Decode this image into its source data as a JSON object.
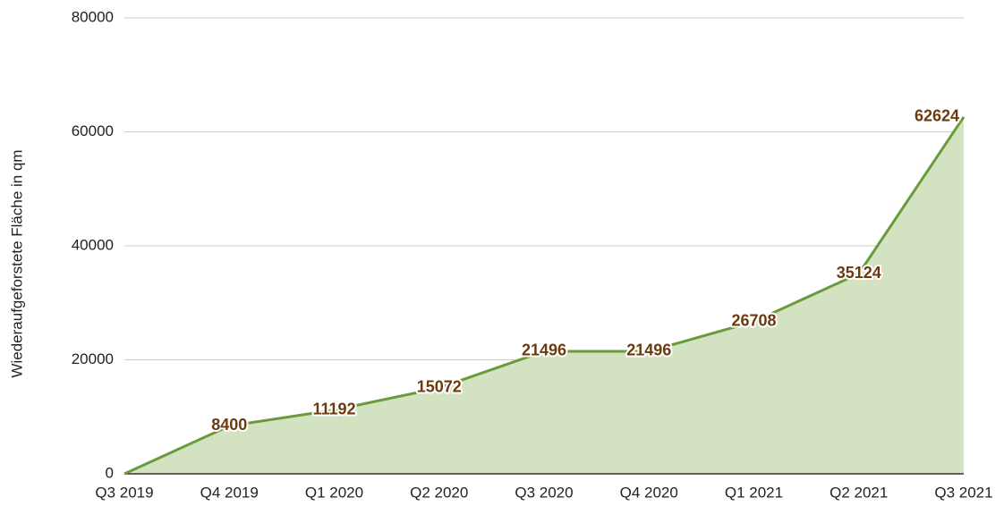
{
  "chart_data": {
    "type": "area",
    "ylabel": "Wiederaufgeforstete Fläche in qm",
    "categories": [
      "Q3 2019",
      "Q4 2019",
      "Q1 2020",
      "Q2 2020",
      "Q3 2020",
      "Q4 2020",
      "Q1 2021",
      "Q2 2021",
      "Q3 2021"
    ],
    "values": [
      0,
      8400,
      11192,
      15072,
      21496,
      21496,
      26708,
      35124,
      62624
    ],
    "value_labels": [
      null,
      "8400",
      "11192",
      "15072",
      "21496",
      "21496",
      "26708",
      "35124",
      "62624"
    ],
    "color": "#6a9a3a",
    "fill": "#d3e2c0",
    "label_color": "#6b3a0f",
    "ylim": [
      0,
      80000
    ],
    "yticks": [
      0,
      20000,
      40000,
      60000,
      80000
    ],
    "grid": true
  }
}
